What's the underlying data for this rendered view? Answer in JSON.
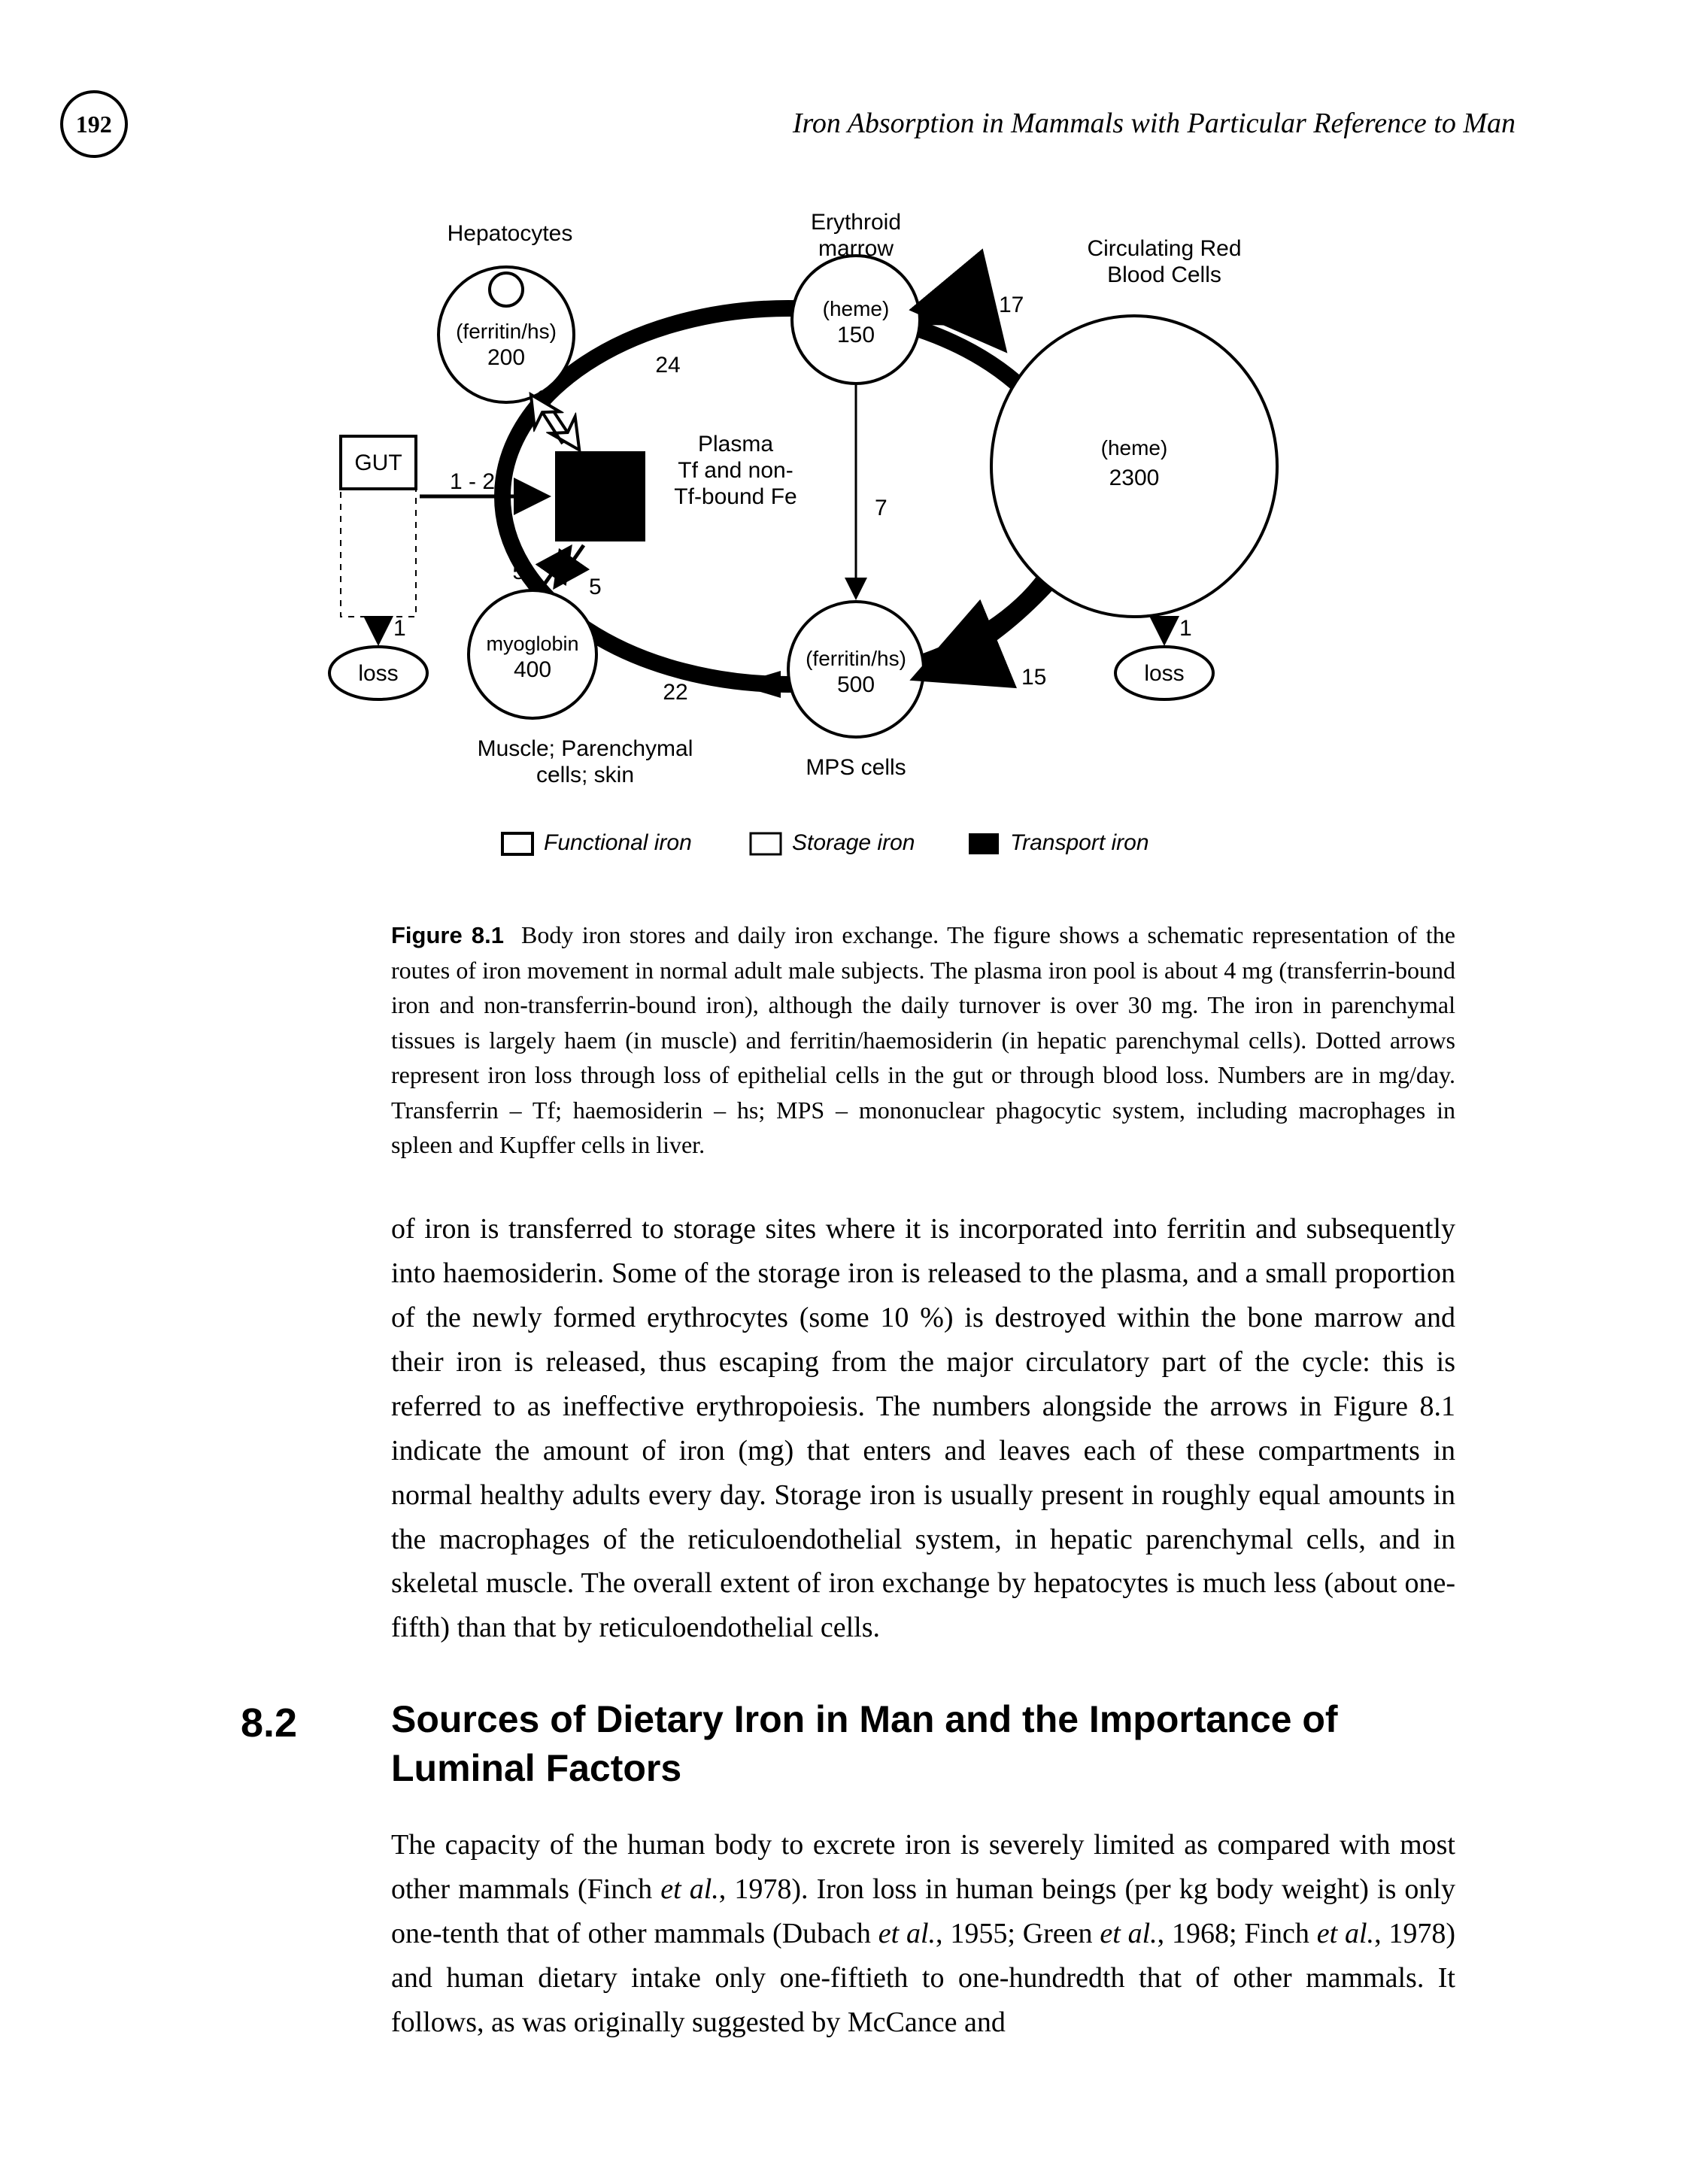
{
  "page_number": "192",
  "running_head": "Iron Absorption in Mammals with Particular Reference to Man",
  "figure": {
    "type": "flowchart",
    "title_labels": {
      "hepatocytes": "Hepatocytes",
      "erythroid_l1": "Erythroid",
      "erythroid_l2": "marrow",
      "circulating_l1": "Circulating Red",
      "circulating_l2": "Blood Cells",
      "plasma_l1": "Plasma",
      "plasma_l2": "Tf and non-",
      "plasma_l3": "Tf-bound Fe",
      "muscle_l1": "Muscle; Parenchymal",
      "muscle_l2": "cells; skin",
      "mps": "MPS cells",
      "gut": "GUT",
      "loss_left": "loss",
      "loss_right": "loss"
    },
    "node_values": {
      "hepatocyte_sub": "(ferritin/hs)",
      "hepatocyte_val": "200",
      "erythroid_sub": "(heme)",
      "erythroid_val": "150",
      "rbc_sub": "(heme)",
      "rbc_val": "2300",
      "muscle_sub": "myoglobin",
      "muscle_val": "400",
      "mps_sub": "(ferritin/hs)",
      "mps_val": "500"
    },
    "edge_labels": {
      "gut_plasma": "1 - 2",
      "hep_plasma": "24",
      "erythroid_rbc": "17",
      "erythroid_mps": "7",
      "rbc_mps": "15",
      "mps_plasma": "22",
      "muscle_plasma_a": "5",
      "muscle_plasma_b": "5",
      "gut_loss": "1",
      "rbc_loss": "1"
    },
    "legend": {
      "functional": "Functional iron",
      "storage": "Storage iron",
      "transport": "Transport iron"
    },
    "colors": {
      "stroke": "#000000",
      "fill_plasma": "#000000",
      "fill_white": "#ffffff",
      "text": "#000000"
    }
  },
  "caption_label": "Figure 8.1",
  "caption_text": "Body iron stores and daily iron exchange. The figure shows a schematic representation of the routes of iron movement in normal adult male subjects. The plasma iron pool is about 4 mg (transferrin-bound iron and non-transferrin-bound iron), although the daily turnover is over 30 mg. The iron in parenchymal tissues is largely haem (in muscle) and ferritin/haemosiderin (in hepatic parenchymal cells). Dotted arrows represent iron loss through loss of epithelial cells in the gut or through blood loss. Numbers are in mg/day. Transferrin – Tf; haemosiderin – hs; MPS – mononuclear phagocytic system, including macrophages in spleen and Kupffer cells in liver.",
  "body_p1": "of iron is transferred to storage sites where it is incorporated into ferritin and subsequently into haemosiderin. Some of the storage iron is released to the plasma, and a small proportion of the newly formed erythrocytes (some 10 %) is destroyed within the bone marrow and their iron is released, thus escaping from the major circulatory part of the cycle: this is referred to as ineffective erythropoiesis. The numbers alongside the arrows in Figure 8.1 indicate the amount of iron (mg) that enters and leaves each of these compartments in normal healthy adults every day. Storage iron is usually present in roughly equal amounts in the macrophages of the reticuloendothelial system, in hepatic parenchymal cells, and in skeletal muscle. The overall extent of iron exchange by hepatocytes is much less (about one-fifth) than that by reticuloendothelial cells.",
  "section_num": "8.2",
  "section_title": "Sources of Dietary Iron in Man and the Importance of Luminal Factors",
  "body_p2_html": "The capacity of the human body to excrete iron is severely limited as compared with most other mammals (Finch <em>et al.</em>, 1978). Iron loss in human beings (per kg body weight) is only one-tenth that of other mammals (Dubach <em>et al.</em>, 1955; Green <em>et al.</em>, 1968; Finch <em>et al.</em>, 1978) and human dietary intake only one-fiftieth to one-hundredth that of other mammals. It follows, as was originally suggested by McCance and"
}
